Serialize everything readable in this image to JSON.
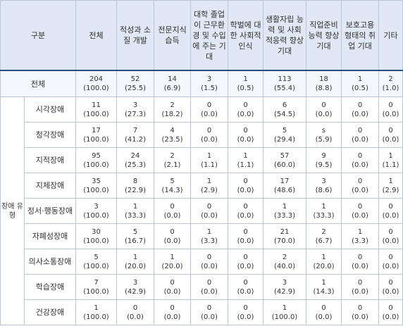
{
  "header": {
    "gubun": "구분",
    "columns": [
      "전체",
      "적성과 소질 개발",
      "전문지식 습득",
      "대학 졸업이 근무환경 및 수입에 주는 기대",
      "학벌에 대한 사회적 인식",
      "생활자립 능력 및 사회 적응력 향상 기대",
      "직업준비 능력 향상 기대",
      "보호고용 형태의 취업 기대",
      "기타"
    ]
  },
  "total_row": {
    "label": "전체",
    "cells": [
      [
        "204",
        "(100.0)"
      ],
      [
        "52",
        "(25.5)"
      ],
      [
        "14",
        "(6.9)"
      ],
      [
        "3",
        "(1.5)"
      ],
      [
        "1",
        "(0.5)"
      ],
      [
        "113",
        "(55.4)"
      ],
      [
        "18",
        "(8.8)"
      ],
      [
        "1",
        "(0.5)"
      ],
      [
        "2",
        "(1.0)"
      ]
    ]
  },
  "group_label": "장애 유형",
  "rows": [
    {
      "label": "시각장애",
      "cells": [
        [
          "11",
          "(100.0)"
        ],
        [
          "3",
          "(27.3)"
        ],
        [
          "2",
          "(18.2)"
        ],
        [
          "0",
          "(0.0)"
        ],
        [
          "0",
          "(0.0)"
        ],
        [
          "6",
          "(54.5)"
        ],
        [
          "0",
          "(0.0)"
        ],
        [
          "0",
          "(0.0)"
        ],
        [
          "0",
          "(0.0)"
        ]
      ]
    },
    {
      "label": "청각장애",
      "cells": [
        [
          "17",
          "(100.0)"
        ],
        [
          "7",
          "(41.2)"
        ],
        [
          "4",
          "(23.5)"
        ],
        [
          "0",
          "(0.0)"
        ],
        [
          "0",
          "(0.0)"
        ],
        [
          "5",
          "(29.4)"
        ],
        [
          "s",
          "(5.9)"
        ],
        [
          "0",
          "(0.0)"
        ],
        [
          "0",
          "(0.0)"
        ]
      ]
    },
    {
      "label": "지적장애",
      "cells": [
        [
          "95",
          "(100.0)"
        ],
        [
          "24",
          "(25.3)"
        ],
        [
          "2",
          "(2.1)"
        ],
        [
          "1",
          "(1.1)"
        ],
        [
          "1",
          "(1.1)"
        ],
        [
          "57",
          "(60.0)"
        ],
        [
          "9",
          "(9.5)"
        ],
        [
          "0",
          "(0.0)"
        ],
        [
          "1",
          "(1.1)"
        ]
      ]
    },
    {
      "label": "지체장애",
      "cells": [
        [
          "35",
          "(100.0)"
        ],
        [
          "8",
          "(22.9)"
        ],
        [
          "5",
          "(14.3)"
        ],
        [
          "1",
          "(2.9)"
        ],
        [
          "0",
          "(0.0)"
        ],
        [
          "17",
          "(48.6)"
        ],
        [
          "3",
          "(8.6)"
        ],
        [
          "0",
          "(0.0)"
        ],
        [
          "1",
          "(2.9)"
        ]
      ]
    },
    {
      "label": "정서·행동장애",
      "cells": [
        [
          "3",
          "(100.0)"
        ],
        [
          "1",
          "(33.3)"
        ],
        [
          "0",
          "(0.0)"
        ],
        [
          "0",
          "(0.0)"
        ],
        [
          "0",
          "(0.0)"
        ],
        [
          "1",
          "(33.3)"
        ],
        [
          "1",
          "(33.3)"
        ],
        [
          "0",
          "(0.0)"
        ],
        [
          "0",
          "(0.0)"
        ]
      ]
    },
    {
      "label": "자폐성장애",
      "cells": [
        [
          "30",
          "(100.0)"
        ],
        [
          "5",
          "(16.7)"
        ],
        [
          "0",
          "(0.0)"
        ],
        [
          "1",
          "(3.3)"
        ],
        [
          "0",
          "(0.0)"
        ],
        [
          "21",
          "(70.0)"
        ],
        [
          "2",
          "(6.7)"
        ],
        [
          "1",
          "(3.3)"
        ],
        [
          "0",
          "(0.0)"
        ]
      ]
    },
    {
      "label": "의사소통장애",
      "cells": [
        [
          "5",
          "(100.0)"
        ],
        [
          "1",
          "(20.0)"
        ],
        [
          "1",
          "(20.0)"
        ],
        [
          "0",
          "(0.0)"
        ],
        [
          "0",
          "(0.0)"
        ],
        [
          "2",
          "(40.0)"
        ],
        [
          "1",
          "(20.0)"
        ],
        [
          "0",
          "(0.0)"
        ],
        [
          "0",
          "(0.0)"
        ]
      ]
    },
    {
      "label": "학습장애",
      "cells": [
        [
          "7",
          "(100.0)"
        ],
        [
          "3",
          "(42.9)"
        ],
        [
          "0",
          "(0.0)"
        ],
        [
          "0",
          "(0.0)"
        ],
        [
          "0",
          "(0.0)"
        ],
        [
          "3",
          "(42.9)"
        ],
        [
          "1",
          "(14.3)"
        ],
        [
          "0",
          "(0.0)"
        ],
        [
          "0",
          "(0.0)"
        ]
      ]
    },
    {
      "label": "건강장애",
      "cells": [
        [
          "1",
          "(100.0)"
        ],
        [
          "0",
          "(0.0)"
        ],
        [
          "0",
          "(0.0)"
        ],
        [
          "0",
          "(0.0)"
        ],
        [
          "0",
          "(0.0)"
        ],
        [
          "1",
          "(100.0)"
        ],
        [
          "0",
          "(0.0)"
        ],
        [
          "0",
          "(0.0)"
        ],
        [
          "0",
          "(0.0)"
        ]
      ]
    }
  ]
}
